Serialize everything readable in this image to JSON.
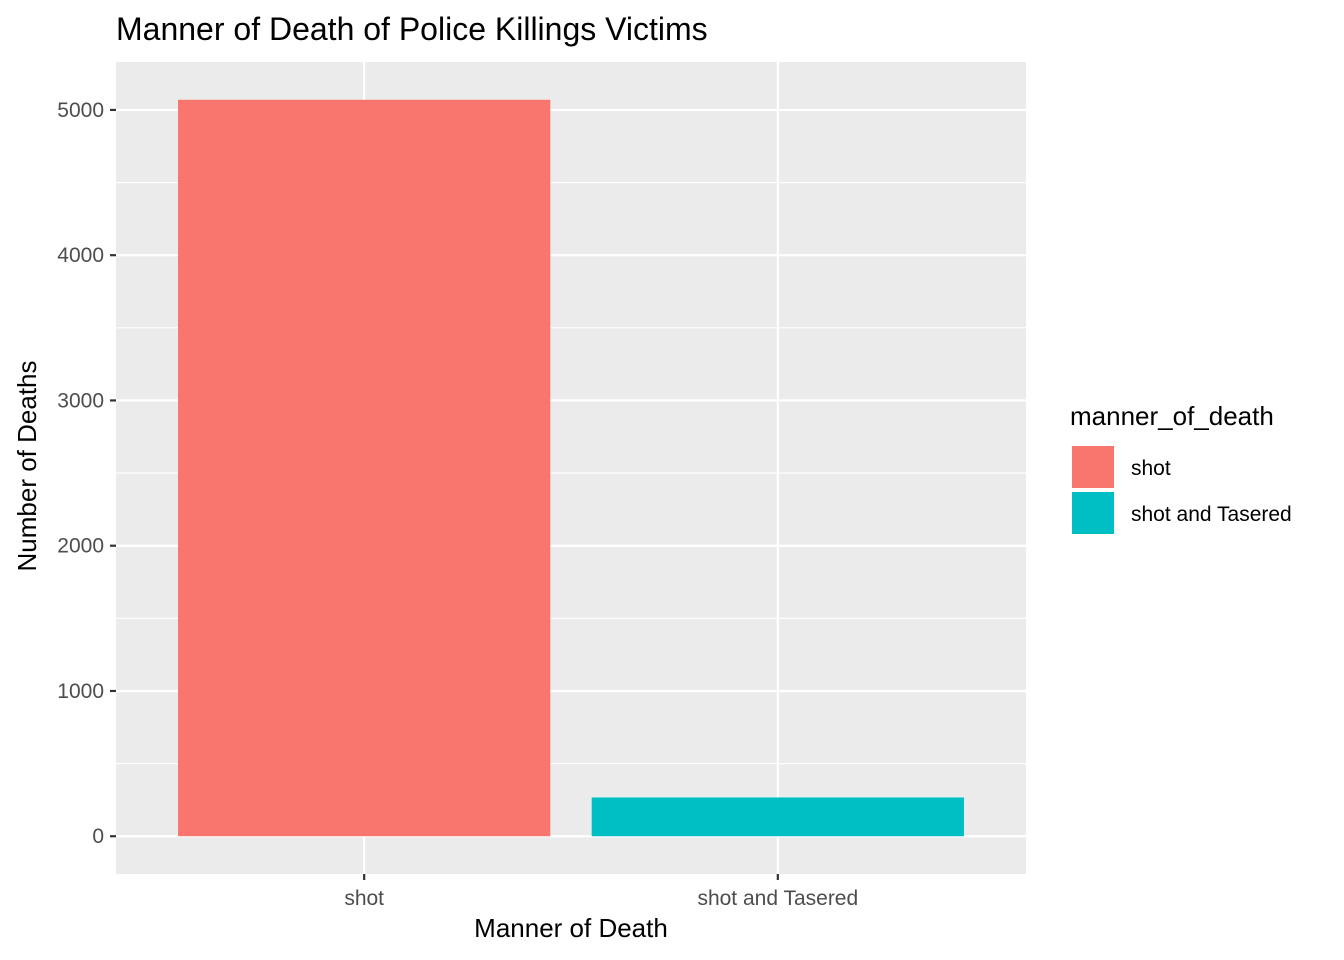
{
  "chart_data": {
    "type": "bar",
    "title": "Manner of Death of Police Killings Victims",
    "xlabel": "Manner of Death",
    "ylabel": "Number of Deaths",
    "categories": [
      "shot",
      "shot and Tasered"
    ],
    "values": [
      5070,
      267
    ],
    "colors": [
      "#F8766D",
      "#00BFC4"
    ],
    "ylim": [
      -260,
      5330
    ],
    "yticks": [
      0,
      1000,
      2000,
      3000,
      4000,
      5000
    ],
    "ytick_labels": [
      "0",
      "1000",
      "2000",
      "3000",
      "4000",
      "5000"
    ],
    "grid": true,
    "panel_background": "#EBEBEB",
    "legend": {
      "title": "manner_of_death",
      "position": "right",
      "entries": [
        "shot",
        "shot and Tasered"
      ]
    }
  }
}
